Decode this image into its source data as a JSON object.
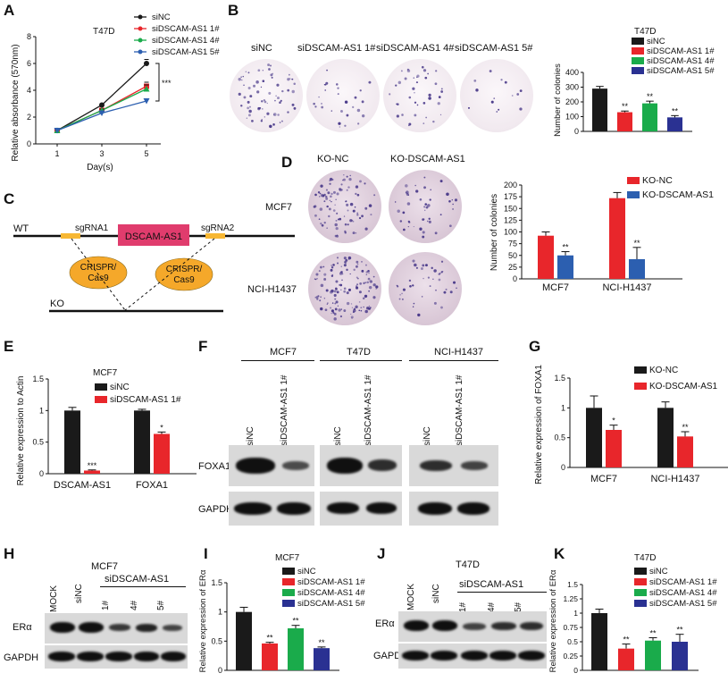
{
  "colors": {
    "black": "#1a1a1a",
    "red": "#e8262b",
    "green": "#1aab4b",
    "blue": "#2a3192",
    "blue2": "#2c5fb0"
  },
  "panelA": {
    "letter": "A",
    "title": "T47D",
    "ylabel": "Relative absorbance (570nm)",
    "xlabel": "Day(s)",
    "sig": "***"
  },
  "panelB": {
    "letter": "B",
    "chart_title": "T47D",
    "dish_labels": [
      "siNC",
      "siDSCAM-AS1 1#",
      "siDSCAM-AS1 4#",
      "siDSCAM-AS1 5#"
    ]
  },
  "panelC": {
    "letter": "C",
    "wt": "WT",
    "ko": "KO",
    "sg1": "sgRNA1",
    "sg2": "sgRNA2",
    "gene": "DSCAM-AS1",
    "cas_a": "CRISPR/",
    "cas_b": "Cas9"
  },
  "panelD": {
    "letter": "D",
    "col_labels": [
      "KO-NC",
      "KO-DSCAM-AS1"
    ],
    "row_labels": [
      "MCF7",
      "NCI-H1437"
    ]
  },
  "panelE": {
    "letter": "E",
    "title": "MCF7"
  },
  "panelF": {
    "letter": "F",
    "groups": [
      "MCF7",
      "T47D",
      "NCI-H1437"
    ],
    "lanes": [
      "siNC",
      "siDSCAM-AS1 1#"
    ],
    "rows": [
      "FOXA1",
      "GAPDH"
    ]
  },
  "panelG": {
    "letter": "G"
  },
  "panelH": {
    "letter": "H",
    "group": "MCF7",
    "sub": "siDSCAM-AS1",
    "lanes": [
      "MOCK",
      "siNC",
      "1#",
      "4#",
      "5#"
    ],
    "rows": [
      "ERα",
      "GAPDH"
    ]
  },
  "panelI": {
    "letter": "I",
    "title": "MCF7"
  },
  "panelJ": {
    "letter": "J",
    "group": "T47D",
    "sub": "siDSCAM-AS1",
    "lanes": [
      "MOCK",
      "siNC",
      "1#",
      "4#",
      "5#"
    ],
    "rows": [
      "ERα",
      "GAPDH"
    ]
  },
  "panelK": {
    "letter": "K",
    "title": "T47D"
  },
  "chart_data": [
    {
      "id": "A",
      "type": "line",
      "title": "T47D",
      "xlabel": "Day(s)",
      "ylabel": "Relative absorbance (570nm)",
      "x": [
        1,
        3,
        5
      ],
      "ylim": [
        0,
        8
      ],
      "yticks": [
        0,
        2,
        4,
        6,
        8
      ],
      "series": [
        {
          "name": "siNC",
          "values": [
            1.0,
            2.9,
            6.0
          ],
          "err": [
            0.05,
            0.1,
            0.3
          ]
        },
        {
          "name": "siDSCAM-AS1 1#",
          "values": [
            1.0,
            2.5,
            4.3
          ],
          "err": [
            0.05,
            0.1,
            0.3
          ]
        },
        {
          "name": "siDSCAM-AS1 4#",
          "values": [
            1.0,
            2.5,
            4.1
          ],
          "err": [
            0.05,
            0.1,
            0.3
          ]
        },
        {
          "name": "siDSCAM-AS1 5#",
          "values": [
            1.0,
            2.3,
            3.2
          ],
          "err": [
            0.05,
            0.1,
            0.15
          ]
        }
      ],
      "annotation": "***"
    },
    {
      "id": "B",
      "type": "bar",
      "title": "T47D",
      "ylabel": "Number of colonies",
      "categories": [
        "siNC",
        "siDSCAM-AS1 1#",
        "siDSCAM-AS1 4#",
        "siDSCAM-AS1 5#"
      ],
      "values": [
        290,
        130,
        190,
        95
      ],
      "err": [
        15,
        8,
        15,
        12
      ],
      "sig": [
        "",
        "**",
        "**",
        "**"
      ],
      "ylim": [
        0,
        400
      ],
      "yticks": [
        0,
        100,
        200,
        300,
        400
      ]
    },
    {
      "id": "D",
      "type": "bar",
      "ylabel": "Number of colonies",
      "categories": [
        "MCF7",
        "NCI-H1437"
      ],
      "ylim": [
        0,
        200
      ],
      "yticks": [
        0,
        25,
        50,
        75,
        100,
        125,
        150,
        175,
        200
      ],
      "series": [
        {
          "name": "KO-NC",
          "values": [
            92,
            172
          ],
          "err": [
            8,
            12
          ]
        },
        {
          "name": "KO-DSCAM-AS1",
          "values": [
            50,
            42
          ],
          "err": [
            8,
            25
          ]
        }
      ],
      "sig": [
        "**",
        "**"
      ]
    },
    {
      "id": "E",
      "type": "bar",
      "title": "MCF7",
      "ylabel": "Relative expression to Actin",
      "categories": [
        "DSCAM-AS1",
        "FOXA1"
      ],
      "ylim": [
        0,
        1.5
      ],
      "yticks": [
        0.0,
        0.5,
        1.0,
        1.5
      ],
      "series": [
        {
          "name": "siNC",
          "values": [
            1.0,
            1.0
          ],
          "err": [
            0.05,
            0.02
          ]
        },
        {
          "name": "siDSCAM-AS1 1#",
          "values": [
            0.05,
            0.63
          ],
          "err": [
            0.01,
            0.03
          ]
        }
      ],
      "sig": [
        "***",
        "*"
      ]
    },
    {
      "id": "G",
      "type": "bar",
      "ylabel": "Relative expression of FOXA1",
      "categories": [
        "MCF7",
        "NCI-H1437"
      ],
      "ylim": [
        0,
        1.5
      ],
      "yticks": [
        0.0,
        0.5,
        1.0,
        1.5
      ],
      "series": [
        {
          "name": "KO-NC",
          "values": [
            1.0,
            1.0
          ],
          "err": [
            0.2,
            0.1
          ]
        },
        {
          "name": "KO-DSCAM-AS1",
          "values": [
            0.63,
            0.52
          ],
          "err": [
            0.08,
            0.08
          ]
        }
      ],
      "sig": [
        "*",
        "**"
      ]
    },
    {
      "id": "I",
      "type": "bar",
      "title": "MCF7",
      "ylabel": "Relative expression of ERα",
      "categories": [
        "siNC",
        "siDSCAM-AS1 1#",
        "siDSCAM-AS1 4#",
        "siDSCAM-AS1 5#"
      ],
      "values": [
        1.0,
        0.46,
        0.72,
        0.38
      ],
      "err": [
        0.08,
        0.02,
        0.05,
        0.02
      ],
      "sig": [
        "",
        "**",
        "**",
        "**"
      ],
      "ylim": [
        0,
        1.5
      ],
      "yticks": [
        0.0,
        0.5,
        1.0,
        1.5
      ]
    },
    {
      "id": "K",
      "type": "bar",
      "title": "T47D",
      "ylabel": "Relative expression of ERα",
      "categories": [
        "siNC",
        "siDSCAM-AS1 1#",
        "siDSCAM-AS1 4#",
        "siDSCAM-AS1 5#"
      ],
      "values": [
        1.0,
        0.38,
        0.52,
        0.5
      ],
      "err": [
        0.07,
        0.08,
        0.05,
        0.13
      ],
      "sig": [
        "",
        "**",
        "**",
        "**"
      ],
      "ylim": [
        0,
        1.5
      ],
      "yticks": [
        0.0,
        0.25,
        0.5,
        0.75,
        1.0,
        1.25,
        1.5
      ]
    }
  ]
}
